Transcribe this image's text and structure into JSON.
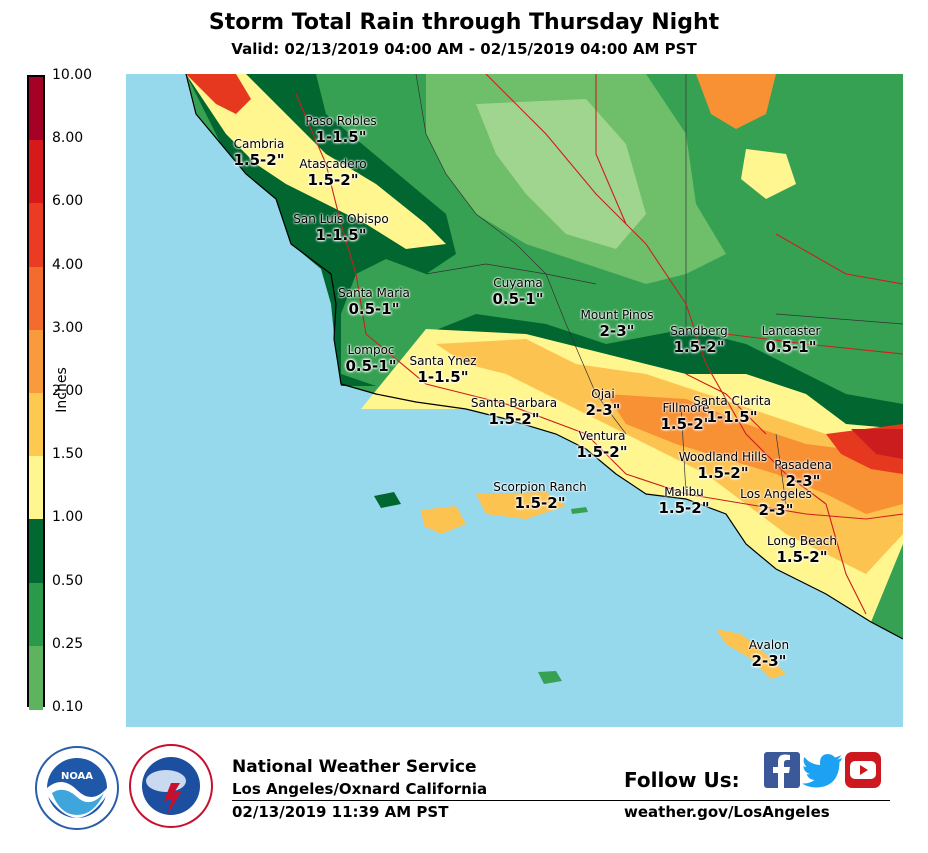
{
  "header": {
    "title": "Storm Total Rain through Thursday Night",
    "subtitle": "Valid: 02/13/2019 04:00 AM - 02/15/2019 04:00 AM PST"
  },
  "colorbar": {
    "axis_label": "Inches",
    "levels": [
      {
        "label": "10.00",
        "color": "#a50026"
      },
      {
        "label": "8.00",
        "color": "#cb1d1d"
      },
      {
        "label": "6.00",
        "color": "#e6371f"
      },
      {
        "label": "4.00",
        "color": "#f3612a"
      },
      {
        "label": "3.00",
        "color": "#f89034"
      },
      {
        "label": "2.00",
        "color": "#fdc350"
      },
      {
        "label": "1.50",
        "color": "#fff690"
      },
      {
        "label": "1.00",
        "color": "#006830"
      },
      {
        "label": "0.50",
        "color": "#2a9a4a"
      },
      {
        "label": "0.25",
        "color": "#5eb45e"
      },
      {
        "label": "0.10",
        "color": "#8dd08a"
      }
    ],
    "bottom_color": "#b9e3a5"
  },
  "map": {
    "ocean_color": "#96d9ec",
    "cities": [
      {
        "name": "Paso Robles",
        "amount": "1-1.5\""
      },
      {
        "name": "Cambria",
        "amount": "1.5-2\""
      },
      {
        "name": "Atascadero",
        "amount": "1.5-2\""
      },
      {
        "name": "San Luis Obispo",
        "amount": "1-1.5\""
      },
      {
        "name": "Cuyama",
        "amount": "0.5-1\""
      },
      {
        "name": "Santa Maria",
        "amount": "0.5-1\""
      },
      {
        "name": "Mount Pinos",
        "amount": "2-3\""
      },
      {
        "name": "Sandberg",
        "amount": "1.5-2\""
      },
      {
        "name": "Lancaster",
        "amount": "0.5-1\""
      },
      {
        "name": "Lompoc",
        "amount": "0.5-1\""
      },
      {
        "name": "Santa Ynez",
        "amount": "1-1.5\""
      },
      {
        "name": "Ojai",
        "amount": "2-3\""
      },
      {
        "name": "Fillmore",
        "amount": "1.5-2\""
      },
      {
        "name": "Santa Clarita",
        "amount": "1-1.5\""
      },
      {
        "name": "Santa Barbara",
        "amount": "1.5-2\""
      },
      {
        "name": "Ventura",
        "amount": "1.5-2\""
      },
      {
        "name": "Woodland Hills",
        "amount": "1.5-2\""
      },
      {
        "name": "Pasadena",
        "amount": "2-3\""
      },
      {
        "name": "Scorpion Ranch",
        "amount": "1.5-2\""
      },
      {
        "name": "Malibu",
        "amount": "1.5-2\""
      },
      {
        "name": "Los Angeles",
        "amount": "2-3\""
      },
      {
        "name": "Long Beach",
        "amount": "1.5-2\""
      },
      {
        "name": "Avalon",
        "amount": "2-3\""
      }
    ]
  },
  "footer": {
    "org": "National Weather Service",
    "office": "Los Angeles/Oxnard California",
    "issued": "02/13/2019 11:39 AM PST",
    "follow": "Follow Us:",
    "url": "weather.gov/LosAngeles",
    "noaa_logo_text": "NOAA",
    "nws_ring_text": "NATIONAL WEATHER SERVICE",
    "noaa_ring_text": "NATIONAL OCEANIC AND ATMOSPHERIC ADMINISTRATION · U.S. DEPARTMENT OF COMMERCE",
    "social_icons": [
      "facebook-icon",
      "twitter-icon",
      "youtube-icon"
    ],
    "social_colors": {
      "facebook": "#3b5998",
      "twitter": "#1da1f2",
      "youtube": "#cc181e"
    }
  }
}
